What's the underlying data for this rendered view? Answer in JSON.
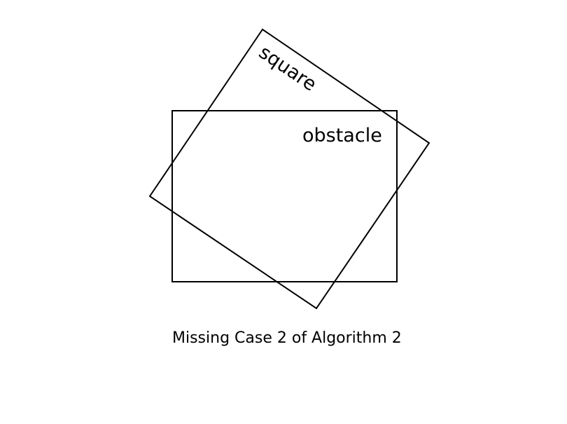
{
  "diagram": {
    "square_label": "square",
    "obstacle_label": "obstacle",
    "caption": "Missing Case 2 of Algorithm 2"
  }
}
